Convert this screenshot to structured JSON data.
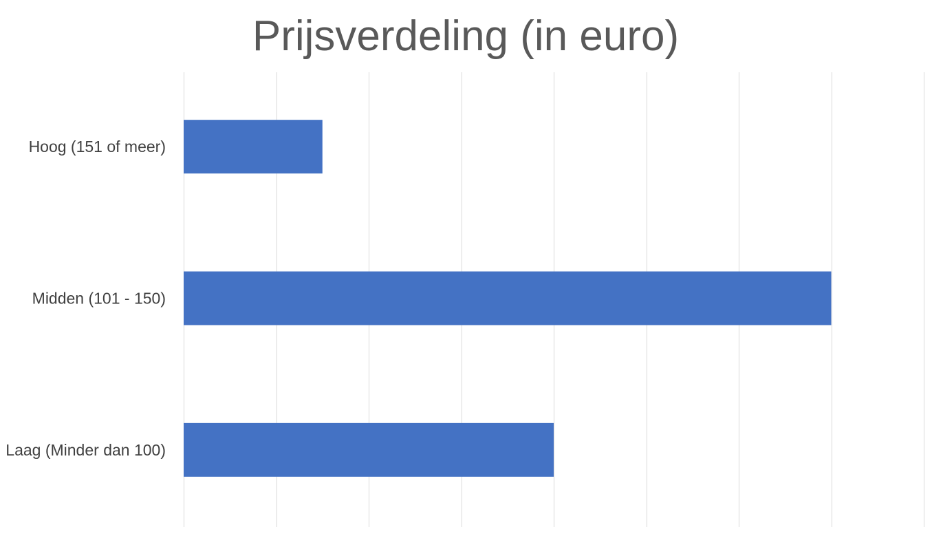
{
  "chart_data": {
    "type": "bar",
    "orientation": "horizontal",
    "title": "Prijsverdeling (in euro)",
    "xlabel": "",
    "ylabel": "",
    "categories": [
      "Hoog (151 of meer)",
      "Midden (101 - 150)",
      "Laag (Minder dan 100)"
    ],
    "values": [
      1.5,
      7,
      4
    ],
    "xlim": [
      0,
      8
    ],
    "x_gridlines": [
      0,
      1,
      2,
      3,
      4,
      5,
      6,
      7,
      8
    ],
    "x_tick_labels_visible": false,
    "grid": true,
    "legend": "none",
    "bar_color": "#4472C4",
    "grid_color": "#D9D9D9",
    "title_color": "#595959",
    "label_color": "#404040"
  }
}
